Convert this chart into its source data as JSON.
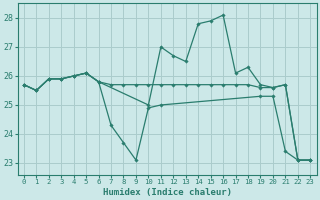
{
  "xlabel": "Humidex (Indice chaleur)",
  "xlim": [
    -0.5,
    23.5
  ],
  "ylim": [
    22.6,
    28.5
  ],
  "yticks": [
    23,
    24,
    25,
    26,
    27,
    28
  ],
  "xticks": [
    0,
    1,
    2,
    3,
    4,
    5,
    6,
    7,
    8,
    9,
    10,
    11,
    12,
    13,
    14,
    15,
    16,
    17,
    18,
    19,
    20,
    21,
    22,
    23
  ],
  "bg_color": "#cce8e8",
  "grid_color": "#aacccc",
  "line_color": "#2a7d6e",
  "lines": [
    {
      "x": [
        0,
        1,
        2,
        3,
        4,
        5,
        6,
        7,
        8,
        9,
        10,
        11,
        12,
        13,
        14,
        15,
        16,
        17,
        18,
        19,
        20,
        21,
        22,
        23
      ],
      "y": [
        25.7,
        25.5,
        25.9,
        25.9,
        26.0,
        26.1,
        25.8,
        25.7,
        25.7,
        25.7,
        25.7,
        25.7,
        25.7,
        25.7,
        25.7,
        25.7,
        25.7,
        25.7,
        25.7,
        25.6,
        25.6,
        25.7,
        23.1,
        23.1
      ]
    },
    {
      "x": [
        0,
        1,
        2,
        3,
        4,
        5,
        6,
        7,
        8,
        9,
        10,
        11,
        19,
        20,
        21,
        22,
        23
      ],
      "y": [
        25.7,
        25.5,
        25.9,
        25.9,
        26.0,
        26.1,
        25.8,
        24.3,
        23.7,
        23.1,
        24.9,
        25.0,
        25.3,
        25.3,
        23.4,
        23.1,
        23.1
      ]
    },
    {
      "x": [
        0,
        1,
        2,
        3,
        4,
        5,
        6,
        10,
        11,
        12,
        13,
        14,
        15,
        16,
        17,
        18,
        19,
        20,
        21,
        22,
        23
      ],
      "y": [
        25.7,
        25.5,
        25.9,
        25.9,
        26.0,
        26.1,
        25.8,
        25.0,
        27.0,
        26.7,
        26.5,
        27.8,
        27.9,
        28.1,
        26.1,
        26.3,
        25.7,
        25.6,
        25.7,
        23.1,
        23.1
      ]
    }
  ]
}
